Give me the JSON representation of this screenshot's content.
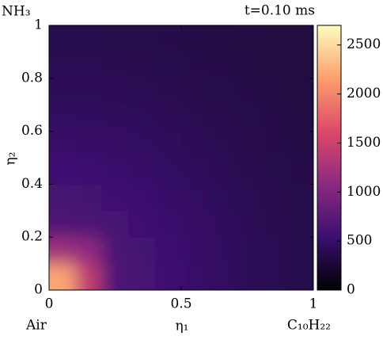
{
  "chart_data": {
    "type": "heatmap",
    "title": "t=0.10 ms",
    "corner_labels": {
      "top_left": "NH₃",
      "bottom_left": "Air",
      "bottom_right": "C₁₀H₂₂"
    },
    "corner_colors": {
      "top_left": "#ff0000",
      "bottom_left": "#0000ff",
      "bottom_right": "#ff00ff"
    },
    "xlabel": "η₁",
    "ylabel": "η₂",
    "xlim": [
      0,
      1
    ],
    "ylim": [
      0,
      1
    ],
    "xticks": [
      0,
      0.5,
      1
    ],
    "yticks": [
      0,
      0.2,
      0.4,
      0.6,
      0.8,
      1
    ],
    "x": [
      0.05,
      0.15,
      0.25,
      0.35,
      0.45,
      0.55,
      0.65,
      0.75,
      0.85,
      0.95
    ],
    "y": [
      0.05,
      0.15,
      0.25,
      0.35,
      0.45,
      0.55,
      0.65,
      0.75,
      0.85,
      0.95
    ],
    "z": [
      [
        2200,
        1400,
        681,
        614,
        556,
        507,
        464,
        427,
        396,
        368
      ],
      [
        1200,
        1100,
        653,
        596,
        546,
        498,
        456,
        424,
        393,
        366
      ],
      [
        681,
        653,
        614,
        567,
        526,
        485,
        445,
        414,
        387,
        361
      ],
      [
        614,
        596,
        567,
        536,
        498,
        464,
        431,
        402,
        376,
        354
      ],
      [
        556,
        546,
        526,
        498,
        468,
        441,
        411,
        387,
        363,
        343
      ],
      [
        507,
        498,
        485,
        464,
        441,
        417,
        393,
        371,
        349,
        332
      ],
      [
        464,
        456,
        445,
        431,
        411,
        393,
        376,
        356,
        339,
        323
      ],
      [
        427,
        424,
        414,
        402,
        387,
        371,
        356,
        343,
        327,
        312
      ],
      [
        396,
        393,
        387,
        376,
        363,
        349,
        339,
        327,
        316,
        304
      ],
      [
        368,
        366,
        361,
        354,
        343,
        332,
        323,
        312,
        304,
        294
      ]
    ],
    "clim": [
      0,
      2700
    ],
    "cticks": [
      0,
      500,
      1000,
      1500,
      2000,
      2500
    ],
    "colormap": [
      "#000004",
      "#3b0f70",
      "#8c2981",
      "#de4968",
      "#fe9f6d",
      "#fcfdbf"
    ]
  }
}
